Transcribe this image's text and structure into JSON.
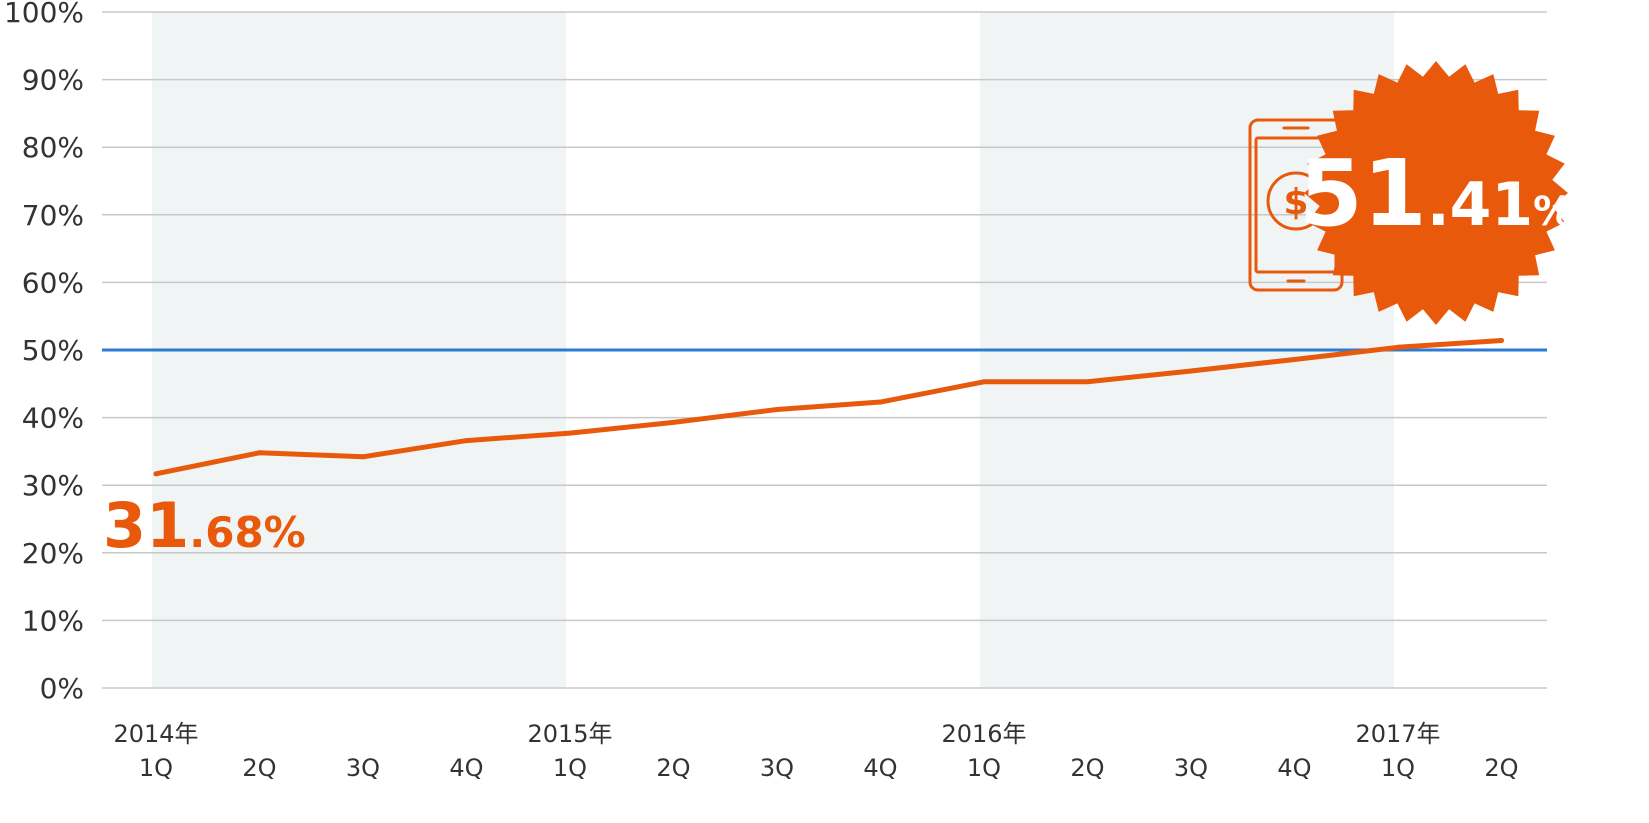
{
  "chart_data": {
    "type": "line",
    "x": [
      "2014年 1Q",
      "2Q",
      "3Q",
      "4Q",
      "2015年 1Q",
      "2Q",
      "3Q",
      "4Q",
      "2016年 1Q",
      "2Q",
      "3Q",
      "4Q",
      "2017年 1Q",
      "2Q"
    ],
    "x_tick_labels": [
      {
        "year": "2014年",
        "quarter": "1Q"
      },
      {
        "year": "",
        "quarter": "2Q"
      },
      {
        "year": "",
        "quarter": "3Q"
      },
      {
        "year": "",
        "quarter": "4Q"
      },
      {
        "year": "2015年",
        "quarter": "1Q"
      },
      {
        "year": "",
        "quarter": "2Q"
      },
      {
        "year": "",
        "quarter": "3Q"
      },
      {
        "year": "",
        "quarter": "4Q"
      },
      {
        "year": "2016年",
        "quarter": "1Q"
      },
      {
        "year": "",
        "quarter": "2Q"
      },
      {
        "year": "",
        "quarter": "3Q"
      },
      {
        "year": "",
        "quarter": "4Q"
      },
      {
        "year": "2017年",
        "quarter": "1Q"
      },
      {
        "year": "",
        "quarter": "2Q"
      }
    ],
    "series": [
      {
        "values": [
          31.68,
          34.8,
          34.2,
          36.6,
          37.7,
          39.3,
          41.2,
          42.3,
          45.3,
          45.3,
          46.9,
          48.6,
          50.4,
          51.41
        ],
        "color": "#e8590c"
      }
    ],
    "y_ticks": [
      "0%",
      "10%",
      "20%",
      "30%",
      "40%",
      "50%",
      "60%",
      "70%",
      "80%",
      "90%",
      "100%"
    ],
    "ylim": [
      0,
      100
    ],
    "reference_line": {
      "value": 50,
      "color": "#2b7bd4"
    },
    "shaded_years": [
      "2014年",
      "2016年"
    ],
    "shade_color": "#f0f4f4",
    "grid": true,
    "grid_color": "#c8c8c8",
    "legend": "none",
    "annotations": {
      "start_value": {
        "int": "31",
        "dec": ".68%"
      },
      "end_value": {
        "int": "51",
        "dec": ".41",
        "unit": "%"
      },
      "end_badge_color": "#e8590c",
      "icon": "smartphone-dollar-icon"
    }
  }
}
